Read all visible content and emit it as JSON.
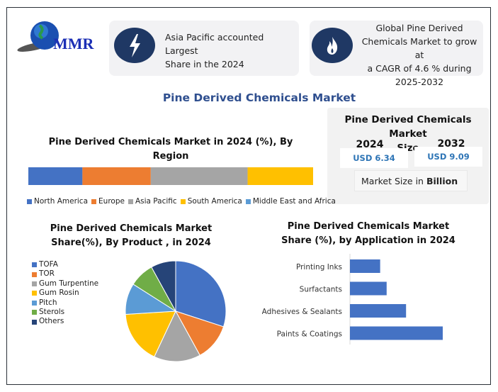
{
  "logo": {
    "text": "MMR"
  },
  "cards": [
    {
      "icon": "lightning-icon",
      "text_lines": [
        "Asia Pacific accounted Largest",
        "Share in the 2024"
      ]
    },
    {
      "icon": "flame-icon",
      "text_lines": [
        "Global Pine Derived",
        "Chemicals Market to grow at",
        "a CAGR of 4.6 % during",
        "2025-2032"
      ]
    }
  ],
  "main_title": "Pine Derived Chemicals Market",
  "market_size": {
    "title_lines": [
      "Pine Derived Chemicals Market",
      "Size"
    ],
    "year1": "2024",
    "value1": "USD 6.34",
    "year2": "2032",
    "value2": "USD 9.09",
    "unit_prefix": "Market Size in ",
    "unit_bold": "Billion"
  },
  "colors": {
    "navy": "#1f3864",
    "title_blue": "#2f4f8f",
    "bar_blue": "#4472c4"
  },
  "chart_data": [
    {
      "type": "bar",
      "orientation": "horizontal-stacked-100",
      "title_lines": [
        "Pine Derived Chemicals Market  in 2024 (%), By",
        "Region"
      ],
      "legend_position": "bottom",
      "series": [
        {
          "name": "North America",
          "value": 19,
          "color": "#4472c4"
        },
        {
          "name": "Europe",
          "value": 24,
          "color": "#ed7d31"
        },
        {
          "name": "Asia Pacific",
          "value": 34,
          "color": "#a5a5a5"
        },
        {
          "name": "South America",
          "value": 23,
          "color": "#ffc000"
        },
        {
          "name": "Middle East and Africa",
          "value": 0,
          "color": "#5b9bd5"
        }
      ]
    },
    {
      "type": "pie",
      "title_lines": [
        "Pine Derived Chemicals Market",
        "Share(%), By Product , in 2024"
      ],
      "legend_position": "left",
      "slices": [
        {
          "name": "TOFA",
          "value": 30,
          "color": "#4472c4"
        },
        {
          "name": "TOR",
          "value": 12,
          "color": "#ed7d31"
        },
        {
          "name": "Gum Turpentine",
          "value": 15,
          "color": "#a5a5a5"
        },
        {
          "name": "Gum Rosin",
          "value": 17,
          "color": "#ffc000"
        },
        {
          "name": "Pitch",
          "value": 10,
          "color": "#5b9bd5"
        },
        {
          "name": "Sterols",
          "value": 8,
          "color": "#70ad47"
        },
        {
          "name": "Others",
          "value": 8,
          "color": "#264478"
        }
      ]
    },
    {
      "type": "bar",
      "orientation": "horizontal",
      "title_lines": [
        "Pine Derived Chemicals Market",
        "Share (%), by Application in 2024"
      ],
      "categories": [
        "Printing Inks",
        "Surfactants",
        "Adhesives & Sealants",
        "Paints & Coatings"
      ],
      "values": [
        14,
        17,
        26,
        43
      ],
      "xlim": [
        0,
        50
      ],
      "color": "#4472c4"
    }
  ]
}
